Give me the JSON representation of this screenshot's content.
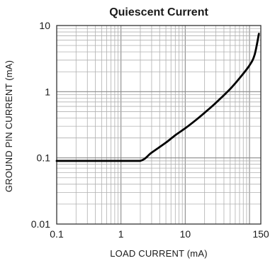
{
  "chart_data": {
    "type": "line",
    "title": "Quiescent Current",
    "xlabel": "LOAD CURRENT (mA)",
    "ylabel": "GROUND PIN CURRENT (mA)",
    "x_scale": "log",
    "y_scale": "log",
    "xlim": [
      0.1,
      150
    ],
    "ylim": [
      0.01,
      10
    ],
    "x_ticks": [
      {
        "value": 0.1,
        "label": "0.1"
      },
      {
        "value": 1,
        "label": "1"
      },
      {
        "value": 10,
        "label": "10"
      },
      {
        "value": 150,
        "label": "150"
      }
    ],
    "y_ticks": [
      {
        "value": 0.01,
        "label": "0.01"
      },
      {
        "value": 0.1,
        "label": "0.1"
      },
      {
        "value": 1,
        "label": "1"
      },
      {
        "value": 10,
        "label": "10"
      }
    ],
    "grid": true,
    "series": [
      {
        "color": "#000000",
        "x": [
          0.1,
          0.5,
          1,
          2,
          3,
          5,
          7,
          10,
          15,
          20,
          30,
          50,
          70,
          100,
          120,
          140
        ],
        "y": [
          0.09,
          0.09,
          0.09,
          0.09,
          0.12,
          0.17,
          0.22,
          0.28,
          0.38,
          0.48,
          0.68,
          1.1,
          1.6,
          2.5,
          3.6,
          7.5
        ]
      }
    ]
  }
}
